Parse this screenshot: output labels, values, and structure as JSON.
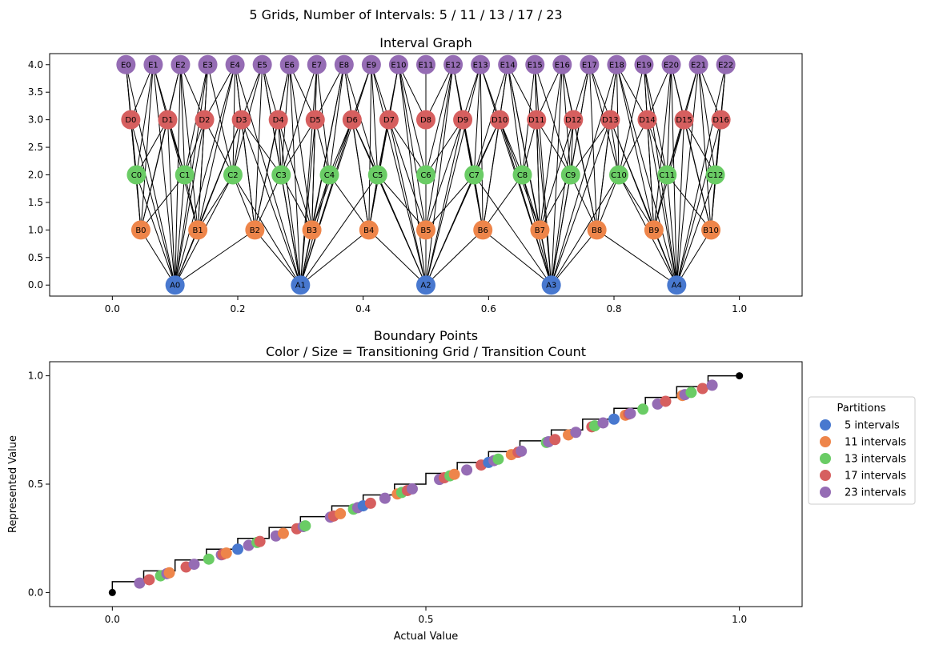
{
  "figure": {
    "suptitle": "5 Grids, Number of Intervals: 5 / 11 / 13 / 17 / 23"
  },
  "colors": {
    "A": "#4878cf",
    "B": "#ee854a",
    "C": "#6acc65",
    "D": "#d65f5f",
    "E": "#956cb4"
  },
  "chart_data": [
    {
      "type": "graph",
      "title": "Interval Graph",
      "xlim": [
        -0.1,
        1.1
      ],
      "ylim": [
        -0.2,
        4.2
      ],
      "xticks": [
        0.0,
        0.2,
        0.4,
        0.6,
        0.8,
        1.0
      ],
      "xtick_labels": [
        "0.0",
        "0.2",
        "0.4",
        "0.6",
        "0.8",
        "1.0"
      ],
      "yticks": [
        0.0,
        0.5,
        1.0,
        1.5,
        2.0,
        2.5,
        3.0,
        3.5,
        4.0
      ],
      "ytick_labels": [
        "0.0",
        "0.5",
        "1.0",
        "1.5",
        "2.0",
        "2.5",
        "3.0",
        "3.5",
        "4.0"
      ],
      "levels": [
        {
          "prefix": "A",
          "y": 0,
          "intervals": 5
        },
        {
          "prefix": "B",
          "y": 1,
          "intervals": 11
        },
        {
          "prefix": "C",
          "y": 2,
          "intervals": 13
        },
        {
          "prefix": "D",
          "y": 3,
          "intervals": 17
        },
        {
          "prefix": "E",
          "y": 4,
          "intervals": 23
        }
      ]
    },
    {
      "type": "scatter",
      "title": "Boundary Points",
      "subtitle": "Color / Size = Transitioning Grid / Transition Count",
      "xlabel": "Actual Value",
      "ylabel": "Represented Value",
      "xlim": [
        -0.1,
        1.1
      ],
      "ylim": [
        -0.065,
        1.065
      ],
      "xticks": [
        0.0,
        0.5,
        1.0
      ],
      "xtick_labels": [
        "0.0",
        "0.5",
        "1.0"
      ],
      "yticks": [
        0.0,
        0.5,
        1.0
      ],
      "ytick_labels": [
        "0.0",
        "0.5",
        "1.0"
      ],
      "legend": {
        "title": "Partitions",
        "placement": "center-right-outside",
        "entries": [
          "5 intervals",
          "11 intervals",
          "13 intervals",
          "17 intervals",
          "23 intervals"
        ]
      },
      "series": [
        {
          "name": "5 intervals",
          "intervals": 5
        },
        {
          "name": "11 intervals",
          "intervals": 11
        },
        {
          "name": "13 intervals",
          "intervals": 13
        },
        {
          "name": "17 intervals",
          "intervals": 17
        },
        {
          "name": "23 intervals",
          "intervals": 23
        }
      ],
      "step": {
        "x": [
          0.0,
          0.0,
          0.05,
          0.05,
          0.1,
          0.1,
          0.15,
          0.15,
          0.2,
          0.2,
          0.25,
          0.25,
          0.3,
          0.3,
          0.35,
          0.35,
          0.4,
          0.4,
          0.45,
          0.45,
          0.5,
          0.5,
          0.55,
          0.55,
          0.6,
          0.6,
          0.65,
          0.65,
          0.7,
          0.7,
          0.75,
          0.75,
          0.8,
          0.8,
          0.85,
          0.85,
          0.9,
          0.9,
          0.95,
          0.95,
          1.0
        ],
        "y": [
          0.0,
          0.05,
          0.05,
          0.1,
          0.1,
          0.15,
          0.15,
          0.2,
          0.2,
          0.25,
          0.25,
          0.3,
          0.3,
          0.35,
          0.35,
          0.4,
          0.4,
          0.45,
          0.45,
          0.5,
          0.5,
          0.55,
          0.55,
          0.6,
          0.6,
          0.65,
          0.65,
          0.7,
          0.7,
          0.75,
          0.75,
          0.8,
          0.8,
          0.85,
          0.85,
          0.9,
          0.9,
          0.95,
          0.95,
          1.0,
          1.0
        ]
      },
      "endpoints": [
        [
          0.0,
          0.0
        ],
        [
          1.0,
          1.0
        ]
      ]
    }
  ]
}
